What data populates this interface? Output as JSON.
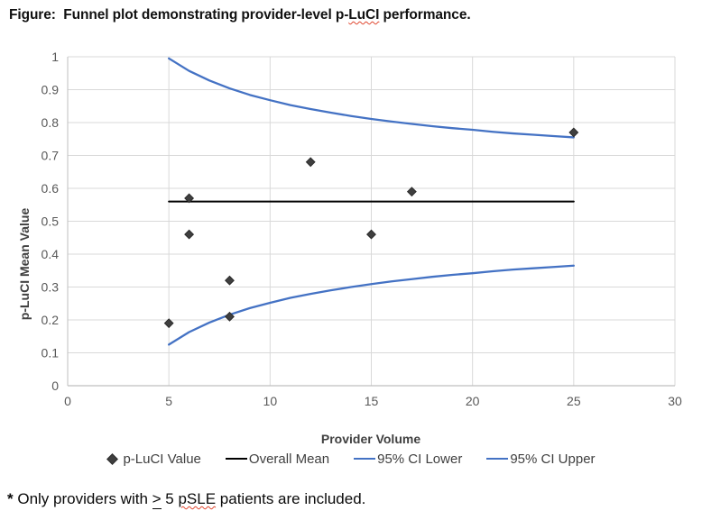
{
  "page": {
    "title": {
      "pre": "Figure:  Funnel plot demonstrating provider-level p-",
      "wavy": "LuCI",
      "post": " performance."
    },
    "footnote": {
      "star": "*",
      "pre": " Only providers with ",
      "gte": ">",
      "mid": " 5 ",
      "wavy": "pSLE",
      "post": " patients are included."
    }
  },
  "colors": {
    "ci_line": "#4472C4",
    "mean_line": "#000000",
    "marker": "#3F3F3F",
    "gridline": "#D9D9D9",
    "axis_line": "#BFBFBF",
    "tick_text": "#595959",
    "axis_title_text": "#404040",
    "legend_text": "#3F3F3F",
    "spellcheck_squiggle": "#E0462F"
  },
  "chart_data": {
    "type": "scatter",
    "title": "Funnel plot demonstrating provider-level p-LuCI performance",
    "xlabel": "Provider Volume",
    "ylabel": "p-LuCI Mean Value",
    "xlim": [
      0,
      30
    ],
    "ylim": [
      0,
      1
    ],
    "xticks": [
      0,
      5,
      10,
      15,
      20,
      25,
      30
    ],
    "xtick_labels": [
      "0",
      "5",
      "10",
      "15",
      "20",
      "25",
      "30"
    ],
    "yticks": [
      0,
      0.1,
      0.2,
      0.3,
      0.4,
      0.5,
      0.6,
      0.7,
      0.8,
      0.9,
      1
    ],
    "ytick_labels": [
      "0",
      "0.1",
      "0.2",
      "0.3",
      "0.4",
      "0.5",
      "0.6",
      "0.7",
      "0.8",
      "0.9",
      "1"
    ],
    "grid": true,
    "legend_position": "bottom",
    "series": [
      {
        "name": "p-LuCI Value",
        "type": "scatter",
        "marker": "diamond",
        "color": "#3F3F3F",
        "points": [
          [
            5,
            0.19
          ],
          [
            6,
            0.46
          ],
          [
            6,
            0.57
          ],
          [
            8,
            0.21
          ],
          [
            8,
            0.32
          ],
          [
            12,
            0.68
          ],
          [
            15,
            0.46
          ],
          [
            17,
            0.59
          ],
          [
            25,
            0.77
          ]
        ]
      },
      {
        "name": "Overall Mean",
        "type": "line",
        "color": "#000000",
        "width": 2,
        "points": [
          [
            5,
            0.56
          ],
          [
            25,
            0.56
          ]
        ]
      },
      {
        "name": "95% CI Lower",
        "type": "line",
        "color": "#4472C4",
        "width": 2.3,
        "points": [
          [
            5,
            0.125
          ],
          [
            6,
            0.163
          ],
          [
            7,
            0.192
          ],
          [
            8,
            0.216
          ],
          [
            9,
            0.236
          ],
          [
            10,
            0.252
          ],
          [
            11,
            0.267
          ],
          [
            12,
            0.279
          ],
          [
            13,
            0.29
          ],
          [
            14,
            0.3
          ],
          [
            15,
            0.309
          ],
          [
            16,
            0.317
          ],
          [
            17,
            0.324
          ],
          [
            18,
            0.331
          ],
          [
            19,
            0.337
          ],
          [
            20,
            0.342
          ],
          [
            21,
            0.348
          ],
          [
            22,
            0.353
          ],
          [
            23,
            0.357
          ],
          [
            24,
            0.361
          ],
          [
            25,
            0.365
          ]
        ]
      },
      {
        "name": "95% CI Upper",
        "type": "line",
        "color": "#4472C4",
        "width": 2.3,
        "points": [
          [
            5,
            0.995
          ],
          [
            6,
            0.957
          ],
          [
            7,
            0.928
          ],
          [
            8,
            0.904
          ],
          [
            9,
            0.884
          ],
          [
            10,
            0.868
          ],
          [
            11,
            0.853
          ],
          [
            12,
            0.841
          ],
          [
            13,
            0.83
          ],
          [
            14,
            0.82
          ],
          [
            15,
            0.811
          ],
          [
            16,
            0.803
          ],
          [
            17,
            0.796
          ],
          [
            18,
            0.789
          ],
          [
            19,
            0.783
          ],
          [
            20,
            0.778
          ],
          [
            21,
            0.772
          ],
          [
            22,
            0.767
          ],
          [
            23,
            0.763
          ],
          [
            24,
            0.759
          ],
          [
            25,
            0.755
          ]
        ]
      }
    ]
  }
}
